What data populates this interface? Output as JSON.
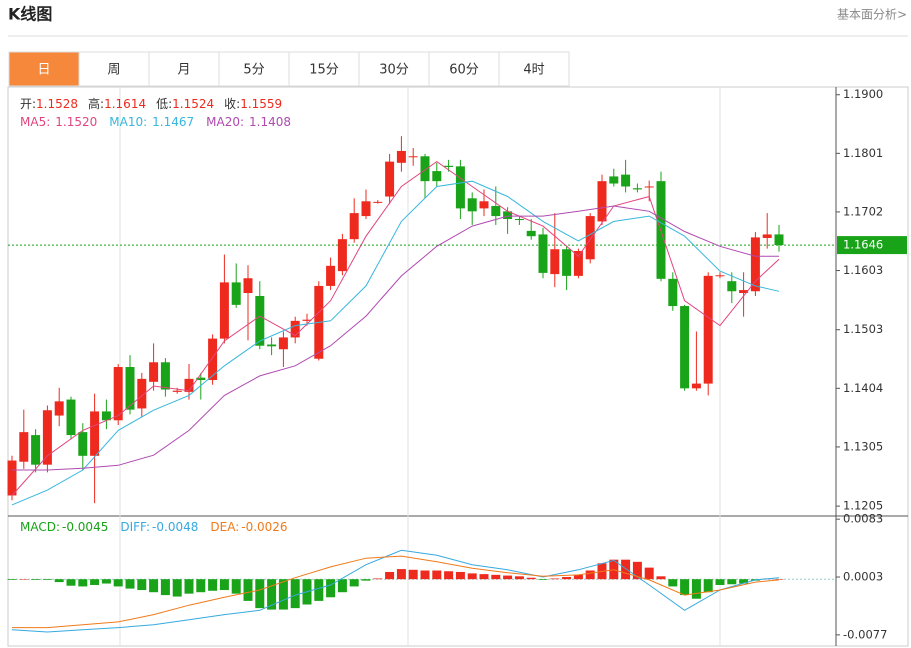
{
  "header": {
    "title": "K线图",
    "link": "基本面分析>"
  },
  "tabs": [
    "日",
    "周",
    "月",
    "5分",
    "15分",
    "30分",
    "60分",
    "4时"
  ],
  "active_tab": 0,
  "chart_data": [
    {
      "type": "candlestick",
      "ohlc_legend": [
        {
          "name": "开:",
          "value": 1.1528
        },
        {
          "name": "高:",
          "value": 1.1614
        },
        {
          "name": "低:",
          "value": 1.1524
        },
        {
          "name": "收:",
          "value": 1.1559
        }
      ],
      "up_color": "#ee2a1f",
      "down_color": "#18a318",
      "ylim": [
        1.119,
        1.1908
      ],
      "yticks": [
        {
          "value": 1.19,
          "label": "1.1900"
        },
        1.1801,
        1.1702,
        1.1603,
        1.1503,
        1.1404,
        1.1305,
        1.1205
      ],
      "last_price": {
        "value": 1.1646,
        "color": "#18a318"
      },
      "open": [
        1.1223,
        1.128,
        1.1325,
        1.1275,
        1.1358,
        1.1385,
        1.133,
        1.129,
        1.1365,
        1.135,
        1.144,
        1.137,
        1.1415,
        1.1448,
        1.1398,
        1.1398,
        1.1422,
        1.1418,
        1.1488,
        1.1583,
        1.1565,
        1.156,
        1.1478,
        1.147,
        1.149,
        1.1518,
        1.1454,
        1.1577,
        1.1602,
        1.1656,
        1.1695,
        1.1718,
        1.1728,
        1.1785,
        1.1795,
        1.1796,
        1.1771,
        1.178,
        1.1779,
        1.1725,
        1.1708,
        1.1712,
        1.1703,
        1.169,
        1.167,
        1.1664,
        1.1597,
        1.1639,
        1.1594,
        1.1622,
        1.1686,
        1.1762,
        1.1765,
        1.1742,
        1.1745,
        1.1754,
        1.1589,
        1.1543,
        1.1404,
        1.1412,
        1.1594,
        1.1585,
        1.1565,
        1.1568,
        1.1658,
        1.1664
      ],
      "high": [
        1.129,
        1.1368,
        1.1335,
        1.1375,
        1.1405,
        1.139,
        1.1345,
        1.1395,
        1.1385,
        1.1445,
        1.146,
        1.143,
        1.148,
        1.1455,
        1.1405,
        1.1445,
        1.143,
        1.1495,
        1.163,
        1.1615,
        1.1612,
        1.1585,
        1.149,
        1.15,
        1.1525,
        1.153,
        1.1585,
        1.1625,
        1.1665,
        1.1725,
        1.174,
        1.1722,
        1.18,
        1.183,
        1.181,
        1.18,
        1.1785,
        1.179,
        1.179,
        1.1735,
        1.174,
        1.1745,
        1.171,
        1.1695,
        1.169,
        1.1675,
        1.17,
        1.1645,
        1.164,
        1.17,
        1.1765,
        1.1775,
        1.179,
        1.175,
        1.1755,
        1.177,
        1.16,
        1.1545,
        1.15,
        1.16,
        1.16,
        1.16,
        1.16,
        1.1668,
        1.17,
        1.168
      ],
      "low": [
        1.1215,
        1.1268,
        1.1262,
        1.1262,
        1.134,
        1.1318,
        1.1265,
        1.121,
        1.1335,
        1.1342,
        1.136,
        1.1355,
        1.14,
        1.139,
        1.1395,
        1.1385,
        1.1385,
        1.141,
        1.148,
        1.154,
        1.1485,
        1.147,
        1.146,
        1.144,
        1.148,
        1.151,
        1.1451,
        1.157,
        1.1595,
        1.165,
        1.169,
        1.1716,
        1.1715,
        1.177,
        1.178,
        1.1725,
        1.1745,
        1.177,
        1.169,
        1.168,
        1.1695,
        1.168,
        1.1665,
        1.168,
        1.1655,
        1.159,
        1.1575,
        1.157,
        1.159,
        1.1615,
        1.168,
        1.1745,
        1.1735,
        1.1735,
        1.172,
        1.1585,
        1.1535,
        1.14,
        1.14,
        1.1392,
        1.159,
        1.1548,
        1.1525,
        1.156,
        1.164,
        1.1635
      ],
      "close": [
        1.1282,
        1.133,
        1.1275,
        1.1367,
        1.1382,
        1.1325,
        1.129,
        1.1365,
        1.135,
        1.144,
        1.1368,
        1.142,
        1.1448,
        1.1402,
        1.14,
        1.142,
        1.1418,
        1.1488,
        1.1583,
        1.1545,
        1.159,
        1.1476,
        1.1475,
        1.149,
        1.1518,
        1.152,
        1.1577,
        1.1611,
        1.1656,
        1.17,
        1.172,
        1.1719,
        1.1787,
        1.1805,
        1.1796,
        1.1754,
        1.1754,
        1.1778,
        1.1708,
        1.1703,
        1.172,
        1.1695,
        1.169,
        1.1689,
        1.1661,
        1.1599,
        1.1639,
        1.1594,
        1.1636,
        1.1695,
        1.1754,
        1.175,
        1.1745,
        1.174,
        1.1745,
        1.1589,
        1.1543,
        1.1404,
        1.1412,
        1.1594,
        1.1595,
        1.1568,
        1.157,
        1.1659,
        1.1664,
        1.1646
      ],
      "lines": [
        {
          "name": "MA5:",
          "color": "#e2457f",
          "legend_value": {
            "value": 1.152,
            "label": "1.1520"
          },
          "x": [
            0,
            3,
            6,
            9,
            12,
            15,
            18,
            21,
            24,
            27,
            30,
            33,
            36,
            39,
            42,
            45,
            48,
            51,
            54,
            57,
            60,
            63,
            65
          ],
          "values": [
            1.1223,
            1.129,
            1.1333,
            1.1358,
            1.1408,
            1.14,
            1.1484,
            1.1526,
            1.1493,
            1.1552,
            1.1661,
            1.1745,
            1.1787,
            1.1745,
            1.1703,
            1.1678,
            1.1627,
            1.1712,
            1.1728,
            1.1552,
            1.151,
            1.1585,
            1.1622
          ]
        },
        {
          "name": "MA10:",
          "color": "#36b7dc",
          "legend_value": 1.1467,
          "x": [
            0,
            3,
            6,
            9,
            12,
            15,
            18,
            21,
            24,
            27,
            30,
            33,
            36,
            39,
            42,
            45,
            48,
            51,
            54,
            57,
            60,
            63,
            65
          ],
          "values": [
            1.1207,
            1.1232,
            1.1266,
            1.1333,
            1.1367,
            1.1392,
            1.1442,
            1.1484,
            1.151,
            1.1518,
            1.1577,
            1.1686,
            1.1745,
            1.1754,
            1.1728,
            1.1686,
            1.1653,
            1.1686,
            1.1695,
            1.1661,
            1.1602,
            1.1577,
            1.1568
          ]
        },
        {
          "name": "MA20:",
          "color": "#b04ab0",
          "legend_value": 1.1408,
          "x": [
            0,
            3,
            6,
            9,
            12,
            15,
            18,
            21,
            24,
            27,
            30,
            33,
            36,
            39,
            42,
            45,
            48,
            51,
            54,
            57,
            60,
            63,
            65
          ],
          "values": [
            1.1266,
            1.1266,
            1.1269,
            1.1274,
            1.1291,
            1.1333,
            1.1392,
            1.1425,
            1.1442,
            1.1476,
            1.1526,
            1.1594,
            1.1644,
            1.1678,
            1.1695,
            1.1695,
            1.1703,
            1.1712,
            1.1703,
            1.1669,
            1.1644,
            1.1627,
            1.1627
          ]
        }
      ]
    },
    {
      "type": "macd",
      "hist_name": "MACD:",
      "hist_value": -0.0045,
      "hist_color": "#18a318",
      "up_color": "#ee2a1f",
      "down_color": "#18a318",
      "ylim": [
        -0.0091,
        0.0086
      ],
      "yticks": [
        0.0083,
        0.0003,
        -0.0077
      ],
      "values": [
        -0.0001,
        0,
        -0.0001,
        -0.0001,
        -0.0004,
        -0.0009,
        -0.001,
        -0.0008,
        -0.0006,
        -0.001,
        -0.0013,
        -0.0015,
        -0.0018,
        -0.0022,
        -0.0024,
        -0.002,
        -0.0018,
        -0.0016,
        -0.0015,
        -0.002,
        -0.003,
        -0.004,
        -0.0042,
        -0.0042,
        -0.004,
        -0.0035,
        -0.003,
        -0.0025,
        -0.0018,
        -0.001,
        -0.0002,
        0.0001,
        0.001,
        0.0014,
        0.0013,
        0.0012,
        0.0012,
        0.0011,
        0.001,
        0.0008,
        0.0007,
        0.0006,
        0.0005,
        0.0004,
        0.0002,
        -0.0001,
        0.0001,
        0.0003,
        0.0006,
        0.0012,
        0.0022,
        0.0027,
        0.0027,
        0.0024,
        0.0016,
        0.0004,
        -0.001,
        -0.0022,
        -0.0027,
        -0.0018,
        -0.0008,
        -0.0007,
        -0.0006,
        -0.0002,
        0.0001,
        0
      ],
      "lines": [
        {
          "name": "DIFF:",
          "color": "#36a9e0",
          "legend_value": -0.0048,
          "x": [
            0,
            3,
            6,
            9,
            12,
            15,
            18,
            21,
            24,
            27,
            30,
            33,
            36,
            39,
            42,
            45,
            48,
            51,
            54,
            57,
            60,
            63,
            65
          ],
          "values": [
            -0.007,
            -0.0073,
            -0.007,
            -0.0067,
            -0.0063,
            -0.0056,
            -0.0049,
            -0.0043,
            -0.0022,
            -0.0008,
            0.002,
            0.004,
            0.0033,
            0.002,
            0.0013,
            0.0003,
            0.0013,
            0.0026,
            -0.0008,
            -0.0043,
            -0.0015,
            -0.0001,
            0.0002
          ]
        },
        {
          "name": "DEA:",
          "color": "#f07a1a",
          "legend_value": -0.0026,
          "x": [
            0,
            3,
            6,
            9,
            12,
            15,
            18,
            21,
            24,
            27,
            30,
            33,
            36,
            39,
            42,
            45,
            48,
            51,
            54,
            57,
            60,
            63,
            65
          ],
          "values": [
            -0.0067,
            -0.0067,
            -0.0063,
            -0.0059,
            -0.0049,
            -0.0036,
            -0.0025,
            -0.0015,
            0.0002,
            0.0017,
            0.0029,
            0.0032,
            0.0024,
            0.0015,
            0.0009,
            0.0004,
            0.0006,
            0.0013,
            -0.0001,
            -0.0022,
            -0.0015,
            -0.0004,
            -0.0001
          ]
        }
      ]
    }
  ]
}
